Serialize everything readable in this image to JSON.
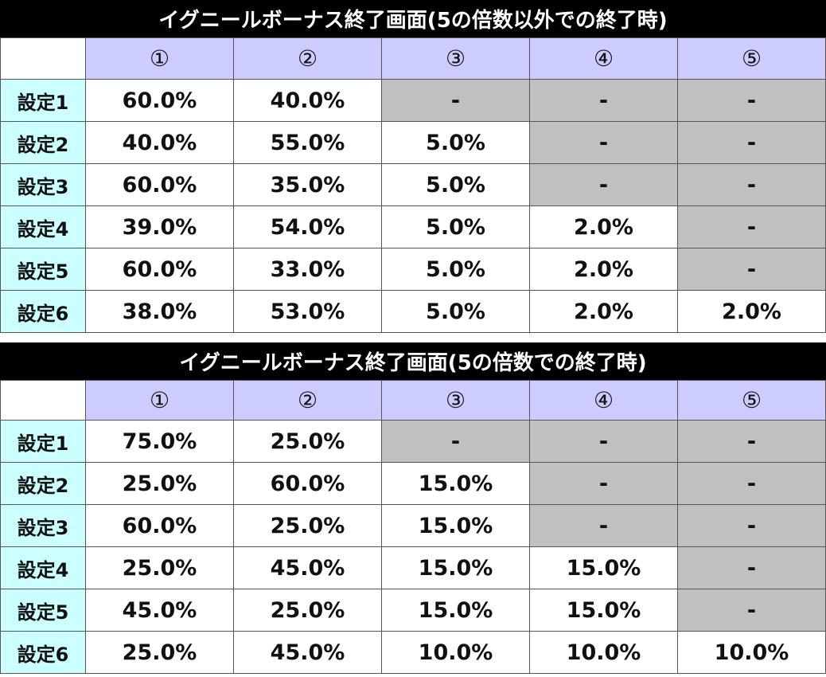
{
  "tables": [
    {
      "title": "イグニールボーナス終了画面(5の倍数以外での終了時)",
      "columns": [
        "①",
        "②",
        "③",
        "④",
        "⑤"
      ],
      "rows": [
        {
          "label": "設定1",
          "cells": [
            "60.0%",
            "40.0%",
            "-",
            "-",
            "-"
          ]
        },
        {
          "label": "設定2",
          "cells": [
            "40.0%",
            "55.0%",
            "5.0%",
            "-",
            "-"
          ]
        },
        {
          "label": "設定3",
          "cells": [
            "60.0%",
            "35.0%",
            "5.0%",
            "-",
            "-"
          ]
        },
        {
          "label": "設定4",
          "cells": [
            "39.0%",
            "54.0%",
            "5.0%",
            "2.0%",
            "-"
          ]
        },
        {
          "label": "設定5",
          "cells": [
            "60.0%",
            "33.0%",
            "5.0%",
            "2.0%",
            "-"
          ]
        },
        {
          "label": "設定6",
          "cells": [
            "38.0%",
            "53.0%",
            "5.0%",
            "2.0%",
            "2.0%"
          ]
        }
      ]
    },
    {
      "title": "イグニールボーナス終了画面(5の倍数での終了時)",
      "columns": [
        "①",
        "②",
        "③",
        "④",
        "⑤"
      ],
      "rows": [
        {
          "label": "設定1",
          "cells": [
            "75.0%",
            "25.0%",
            "-",
            "-",
            "-"
          ]
        },
        {
          "label": "設定2",
          "cells": [
            "25.0%",
            "60.0%",
            "15.0%",
            "-",
            "-"
          ]
        },
        {
          "label": "設定3",
          "cells": [
            "60.0%",
            "25.0%",
            "15.0%",
            "-",
            "-"
          ]
        },
        {
          "label": "設定4",
          "cells": [
            "25.0%",
            "45.0%",
            "15.0%",
            "15.0%",
            "-"
          ]
        },
        {
          "label": "設定5",
          "cells": [
            "45.0%",
            "25.0%",
            "15.0%",
            "15.0%",
            "-"
          ]
        },
        {
          "label": "設定6",
          "cells": [
            "25.0%",
            "45.0%",
            "10.0%",
            "10.0%",
            "10.0%"
          ]
        }
      ]
    }
  ]
}
